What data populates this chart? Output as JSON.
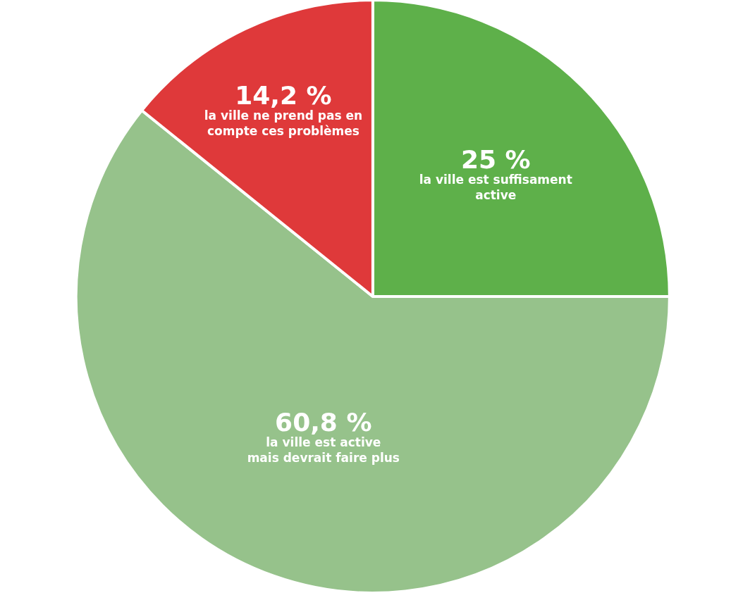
{
  "chart_data": {
    "type": "pie",
    "categories": [
      "la ville est suffisament\nactive",
      "la ville est active\nmais devrait faire plus",
      "la ville ne prend pas en\ncompte ces problèmes"
    ],
    "values": [
      25,
      60.8,
      14.2
    ],
    "colors": [
      "#5eb04a",
      "#96c28b",
      "#df393a"
    ],
    "value_labels": [
      "25 %",
      "60,8 %",
      "14,2 %"
    ]
  }
}
